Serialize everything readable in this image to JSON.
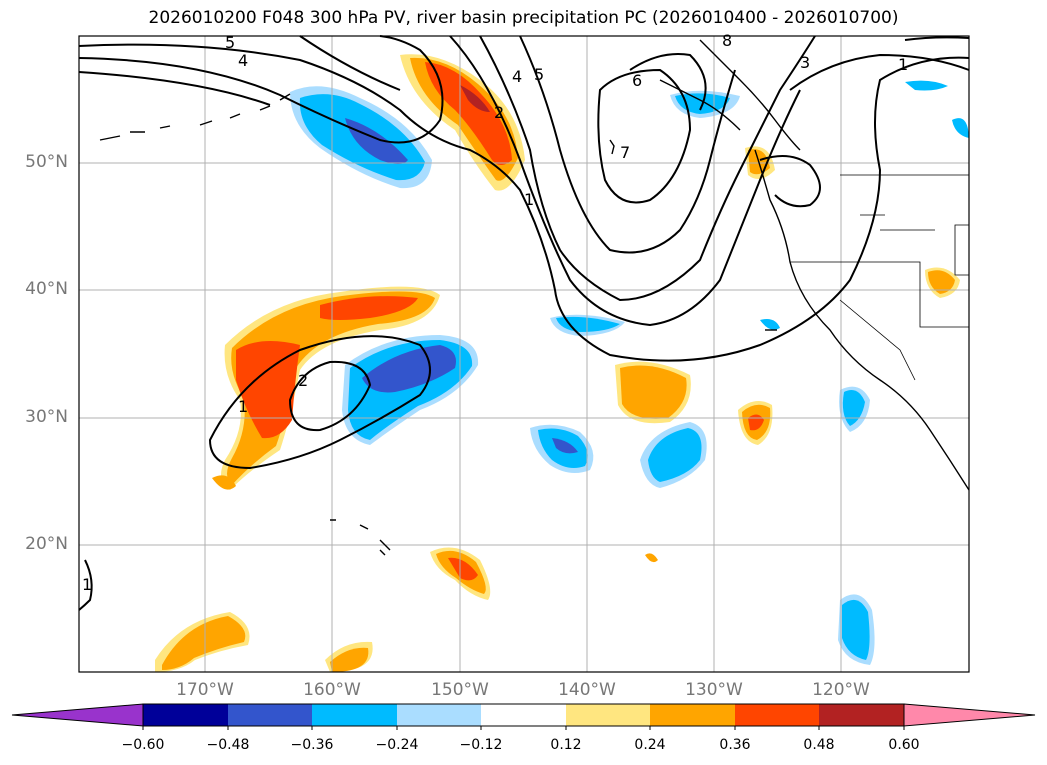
{
  "title": "2026010200 F048 300 hPa PV, river basin precipitation PC (2026010400 - 2026010700)",
  "lat_labels": [
    "50°N",
    "40°N",
    "30°N",
    "20°N"
  ],
  "lon_labels": [
    "170°W",
    "160°W",
    "150°W",
    "140°W",
    "130°W",
    "120°W"
  ],
  "colorbar": {
    "ticks": [
      "−0.60",
      "−0.48",
      "−0.36",
      "−0.24",
      "−0.12",
      "0.12",
      "0.24",
      "0.36",
      "0.48",
      "0.60"
    ],
    "colors": [
      "#9933cc",
      "#000099",
      "#3355cc",
      "#00bbff",
      "#aaddff",
      "#ffffff",
      "#ffe680",
      "#ffa500",
      "#ff4500",
      "#b22222",
      "#ff88aa"
    ]
  },
  "contour_labels": [
    "5",
    "4",
    "1",
    "2",
    "4",
    "5",
    "6",
    "7",
    "8",
    "3",
    "1",
    "2",
    "1",
    "1"
  ]
}
